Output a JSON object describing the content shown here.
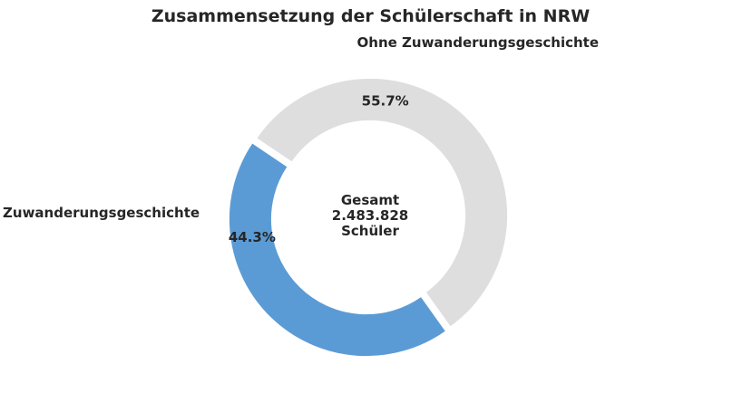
{
  "chart_data": {
    "type": "pie",
    "variant": "donut",
    "title": "Zusammensetzung der Schülerschaft in NRW",
    "slices": [
      {
        "label": "Ohne Zuwanderungsgeschichte",
        "value": 55.7,
        "pct_label": "55.7%",
        "color": "#dedede"
      },
      {
        "label": "Mit Zuwanderungsgeschichte",
        "value": 44.3,
        "pct_label": "44.3%",
        "color": "#5b9bd5"
      }
    ],
    "center_text": [
      "Gesamt",
      "2.483.828",
      "Schüler"
    ],
    "legend": "none"
  }
}
